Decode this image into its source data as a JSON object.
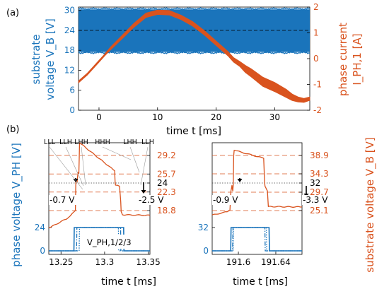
{
  "colors": {
    "blue": "#1a74bb",
    "orange": "#d9531e",
    "black": "#000000",
    "gray": "#555555"
  },
  "chart_data": [
    {
      "panel": "(a)",
      "type": "line",
      "xlabel": "time t [ms]",
      "ylabel_left": [
        "substrate",
        "voltage V_B [V]"
      ],
      "ylabel_right": [
        "phase current",
        "I_PH,1 [A]"
      ],
      "xlim": [
        -3.5,
        36
      ],
      "ylim_left": [
        0,
        31
      ],
      "ylim_right": [
        -2,
        2
      ],
      "xticks": [
        0,
        10,
        20,
        30
      ],
      "yticks_left": [
        0,
        6,
        12,
        18,
        24,
        30
      ],
      "yticks_right": [
        -2,
        -1,
        0,
        1,
        2
      ],
      "reference_line_left": 24,
      "series": [
        {
          "axis": "left",
          "band": true,
          "band_min": 17.5,
          "band_max": 30.3
        },
        {
          "axis": "right",
          "x": [
            -3.5,
            -2,
            0,
            1,
            2,
            4,
            6,
            8,
            10,
            12,
            14,
            16,
            18,
            20,
            22,
            23,
            24,
            25,
            26,
            28,
            30,
            32,
            33,
            34,
            35,
            36
          ],
          "y": [
            -0.9,
            -0.6,
            -0.1,
            0.15,
            0.4,
            0.85,
            1.3,
            1.68,
            1.8,
            1.78,
            1.6,
            1.35,
            1.0,
            0.6,
            0.2,
            -0.05,
            -0.2,
            -0.4,
            -0.55,
            -0.9,
            -1.1,
            -1.35,
            -1.5,
            -1.58,
            -1.62,
            -1.55
          ],
          "width_y": [
            0,
            0,
            0,
            0,
            0.02,
            0.03,
            0.04,
            0.05,
            0.05,
            0.05,
            0.05,
            0.05,
            0.05,
            0.05,
            0.05,
            0.05,
            0.06,
            0.1,
            0.12,
            0.14,
            0.14,
            0.12,
            0.09,
            0.06,
            0.04,
            0.03
          ]
        }
      ]
    },
    {
      "panel": "(b)",
      "type": "line",
      "xlabel": "time t [ms]",
      "ylabel_left": "phase voltage V_PH [V]",
      "ylabel_right": "substrate voltage V_B [V]",
      "legend": "V_PH,1/2/3",
      "subplots": [
        {
          "xlim": [
            13.236,
            13.352
          ],
          "xticks": [
            13.25,
            13.3,
            13.35
          ],
          "xticklabels": [
            "13.25",
            "13.3",
            "13.35"
          ],
          "yticks_left": [
            0,
            24
          ],
          "yticks_right": [
            18.8,
            22.3,
            24,
            25.7,
            29.2
          ],
          "dashed_refs": [
            18.8,
            22.3,
            25.7,
            29.2
          ],
          "dotted_ref": 24,
          "state_labels": [
            "LLL",
            "LLH",
            "LHH",
            "HHH",
            "LHH",
            "LLH"
          ],
          "drop_labels": [
            "-0.7 V",
            "-2.5 V"
          ],
          "vb_x": [
            13.236,
            13.258,
            13.263,
            13.2665,
            13.267,
            13.2675,
            13.2685,
            13.269,
            13.2695,
            13.2705,
            13.271,
            13.2713,
            13.3115,
            13.312,
            13.3125,
            13.317,
            13.3175,
            13.3185,
            13.319,
            13.3205,
            13.352
          ],
          "vb_y": [
            15.5,
            17.4,
            18.3,
            18.8,
            24.2,
            24.6,
            24.2,
            25.2,
            26.0,
            25.8,
            29.2,
            31.6,
            26.3,
            24.3,
            23.6,
            23.4,
            22.6,
            20.5,
            18.6,
            18.0,
            17.9
          ],
          "phase_lines": [
            {
              "style": "solid",
              "x": [
                13.236,
                13.2648,
                13.2652,
                13.3218,
                13.3222,
                13.352
              ],
              "y": [
                0,
                0,
                24,
                24,
                0,
                0
              ]
            },
            {
              "style": "dashdot",
              "x": [
                13.236,
                13.2678,
                13.2682,
                13.3183,
                13.3187,
                13.352
              ],
              "y": [
                0,
                0,
                24,
                24,
                0,
                0
              ]
            },
            {
              "style": "dotted",
              "x": [
                13.236,
                13.2708,
                13.2712,
                13.3158,
                13.3162,
                13.352
              ],
              "y": [
                0,
                0,
                24,
                24,
                0,
                0
              ]
            }
          ]
        },
        {
          "xlim": [
            191.572,
            191.668
          ],
          "xticks": [
            191.6,
            191.64
          ],
          "xticklabels": [
            "191.6",
            "191.64"
          ],
          "yticks_left": [
            0,
            32
          ],
          "yticks_right": [
            25.1,
            29.7,
            32,
            34.3,
            38.9
          ],
          "dashed_refs": [
            25.1,
            29.7,
            34.3,
            38.9
          ],
          "dotted_ref": 32,
          "drop_labels": [
            "-0.9 V",
            "-3.3 V"
          ],
          "vb_x": [
            191.572,
            191.588,
            191.591,
            191.592,
            191.5925,
            191.5932,
            191.594,
            191.5945,
            191.595,
            191.5955,
            191.627,
            191.6275,
            191.628,
            191.6285,
            191.631,
            191.632,
            191.668
          ],
          "vb_y": [
            24.0,
            24.8,
            25.2,
            30.0,
            30.5,
            31.4,
            30.0,
            31.5,
            38.8,
            40.2,
            38.2,
            35.5,
            32.2,
            31.2,
            30.0,
            26.1,
            26.0
          ],
          "phase_lines": [
            {
              "style": "solid",
              "x": [
                191.572,
                191.5918,
                191.5922,
                191.6328,
                191.6332,
                191.668
              ],
              "y": [
                0,
                0,
                32,
                32,
                0,
                0
              ]
            },
            {
              "style": "dashdot",
              "x": [
                191.572,
                191.5938,
                191.5942,
                191.6283,
                191.6287,
                191.668
              ],
              "y": [
                0,
                0,
                32,
                32,
                0,
                0
              ]
            },
            {
              "style": "dotted",
              "x": [
                191.572,
                191.5943,
                191.5947,
                191.6298,
                191.6302,
                191.668
              ],
              "y": [
                0,
                0,
                32,
                32,
                0,
                0
              ]
            }
          ]
        }
      ]
    }
  ]
}
